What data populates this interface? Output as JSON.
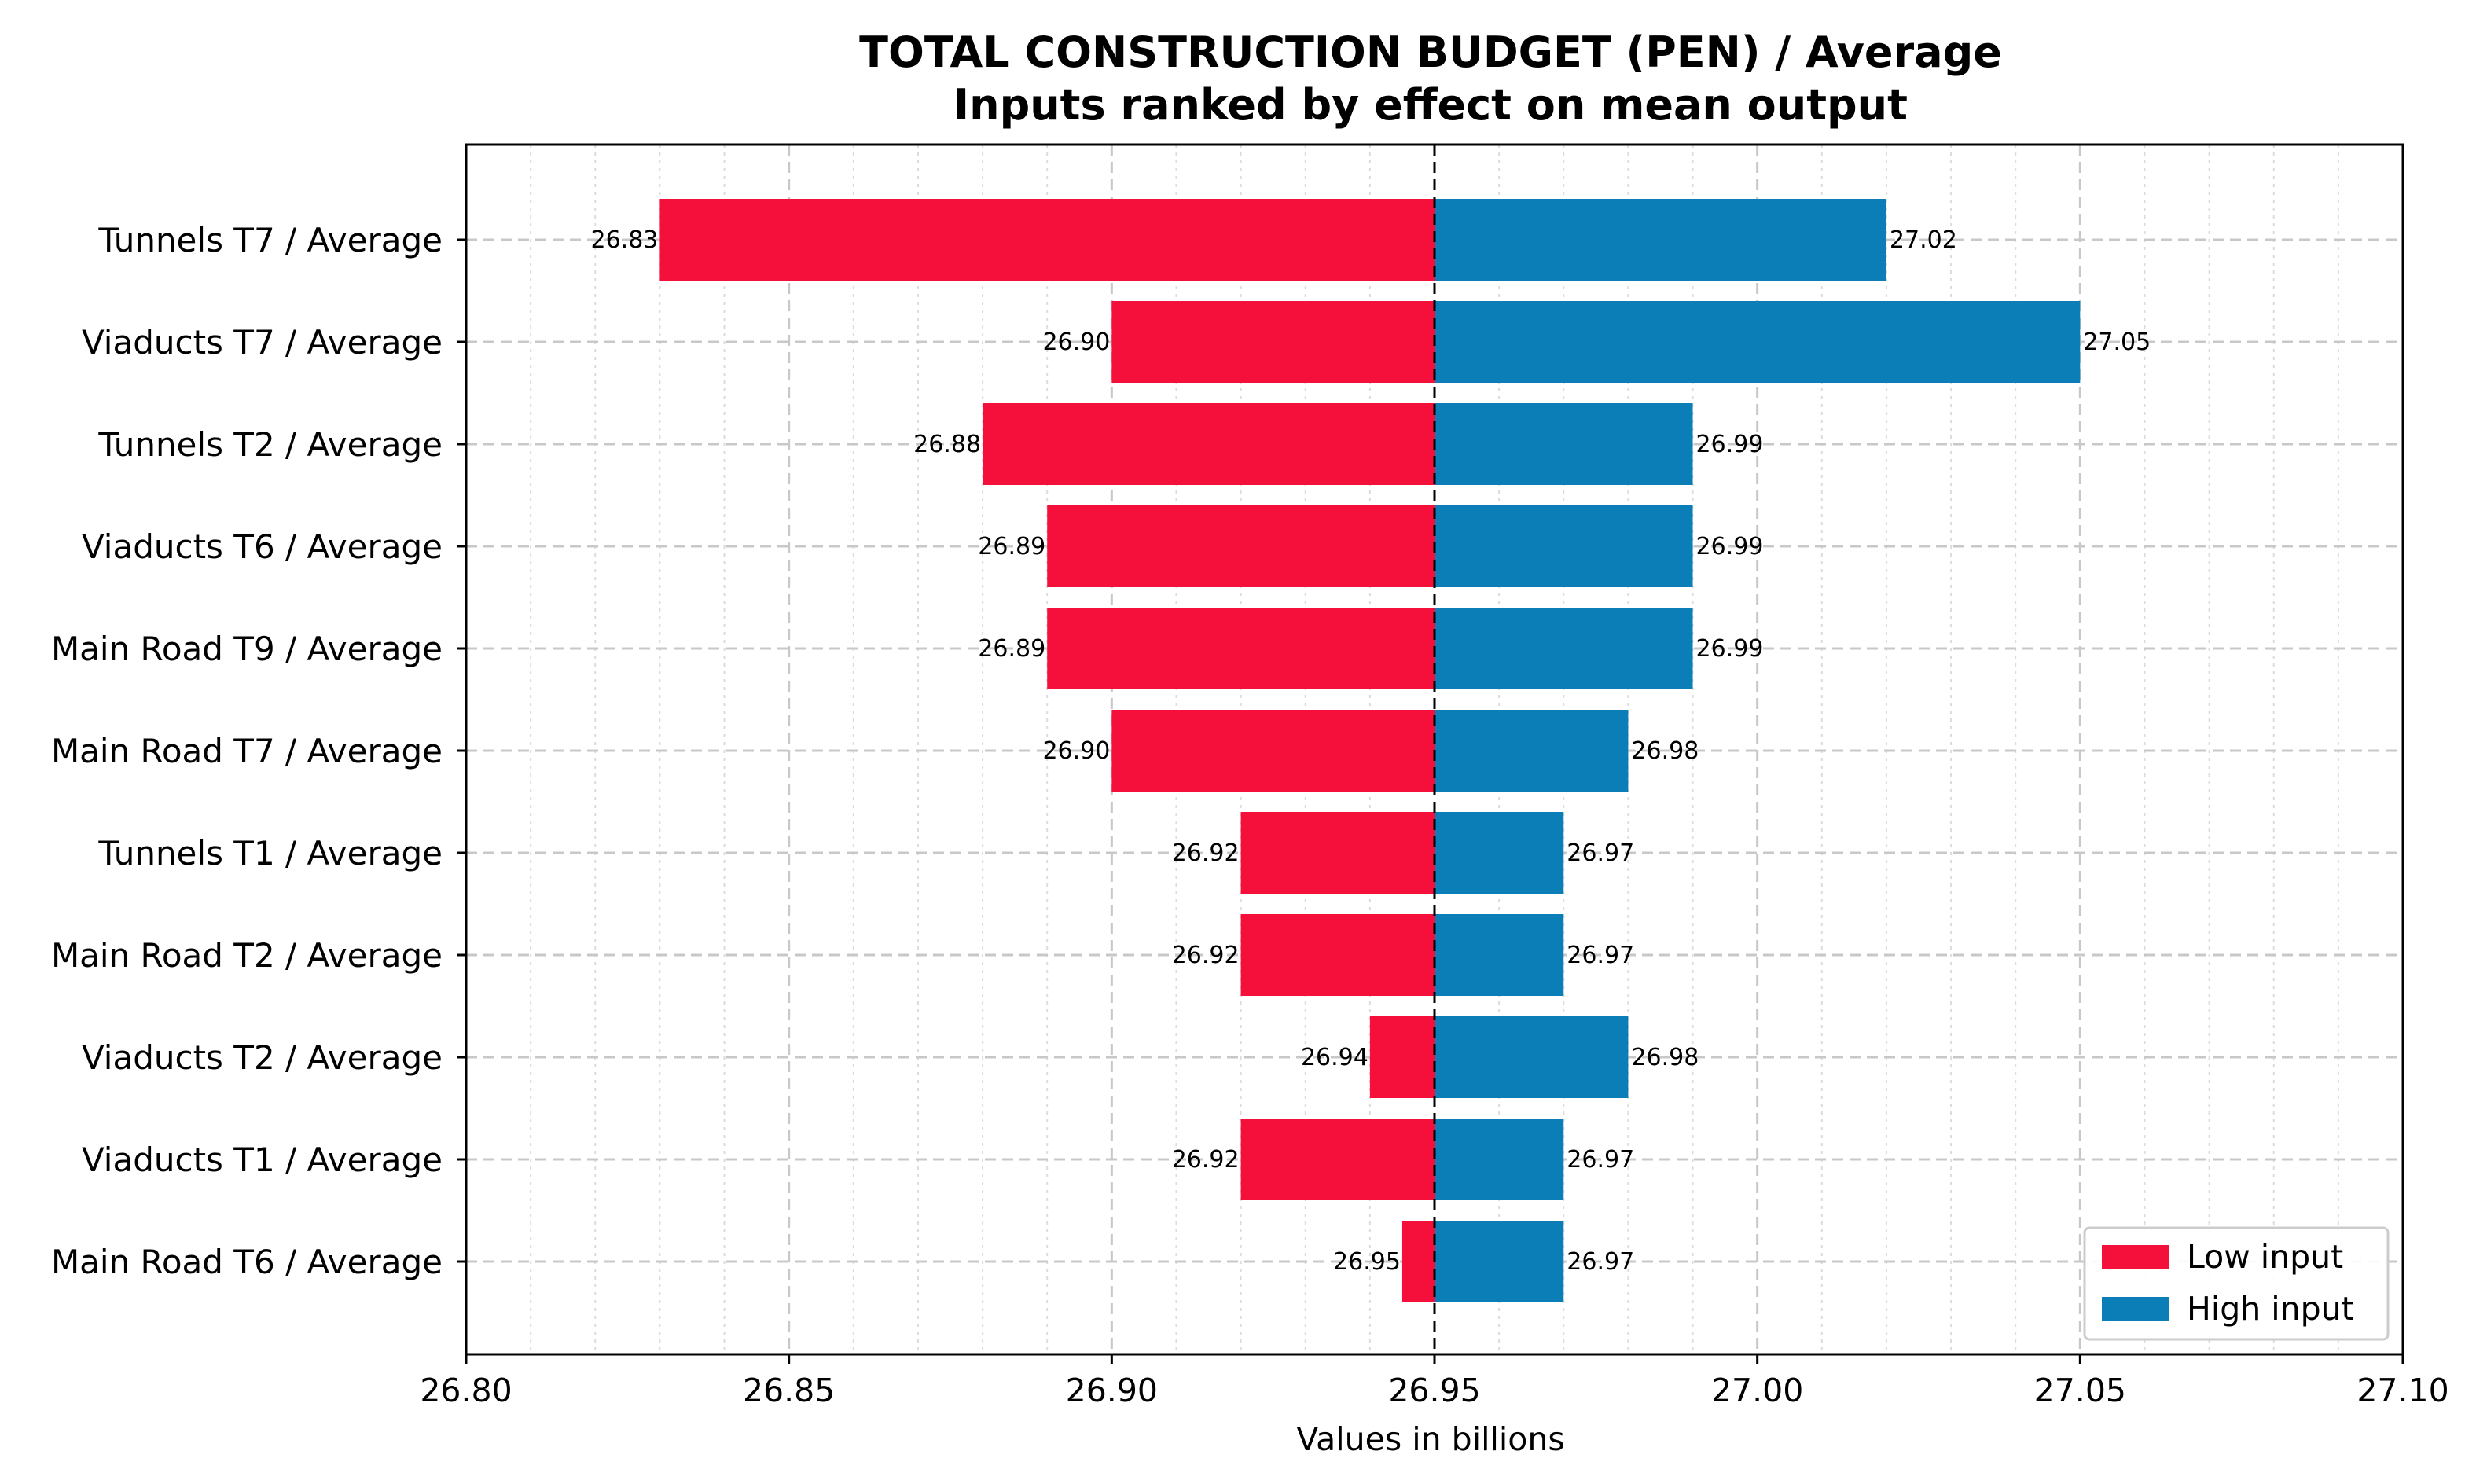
{
  "chart_data": {
    "type": "bar",
    "orientation": "horizontal-tornado",
    "title": "TOTAL CONSTRUCTION BUDGET (PEN) / Average",
    "subtitle": "Inputs ranked by effect on mean output",
    "xlabel": "Values in billions",
    "ylabel": "",
    "xlim": [
      26.8,
      27.1
    ],
    "xticks": [
      26.8,
      26.85,
      26.9,
      26.95,
      27.0,
      27.05,
      27.1
    ],
    "xtick_labels": [
      "26.80",
      "26.85",
      "26.90",
      "26.95",
      "27.00",
      "27.05",
      "27.10"
    ],
    "baseline": 26.95,
    "grid": true,
    "legend_position": "bottom-right",
    "categories": [
      "Tunnels T7 / Average",
      "Viaducts T7 / Average",
      "Tunnels T2 / Average",
      "Viaducts T6 / Average",
      "Main Road T9 / Average",
      "Main Road T7 / Average",
      "Tunnels T1 / Average",
      "Main Road T2 / Average",
      "Viaducts T2 / Average",
      "Viaducts T1 / Average",
      "Main Road T6 / Average"
    ],
    "series": [
      {
        "name": "Low input",
        "color": "#f5103b",
        "values": [
          26.83,
          26.9,
          26.88,
          26.89,
          26.89,
          26.9,
          26.92,
          26.92,
          26.94,
          26.92,
          26.945
        ],
        "labels": [
          "26.83",
          "26.90",
          "26.88",
          "26.89",
          "26.89",
          "26.90",
          "26.92",
          "26.92",
          "26.94",
          "26.92",
          "26.95"
        ]
      },
      {
        "name": "High input",
        "color": "#0b7db7",
        "values": [
          27.02,
          27.05,
          26.99,
          26.99,
          26.99,
          26.98,
          26.97,
          26.97,
          26.98,
          26.97,
          26.97
        ],
        "labels": [
          "27.02",
          "27.05",
          "26.99",
          "26.99",
          "26.99",
          "26.98",
          "26.97",
          "26.97",
          "26.98",
          "26.97",
          "26.97"
        ]
      }
    ]
  }
}
